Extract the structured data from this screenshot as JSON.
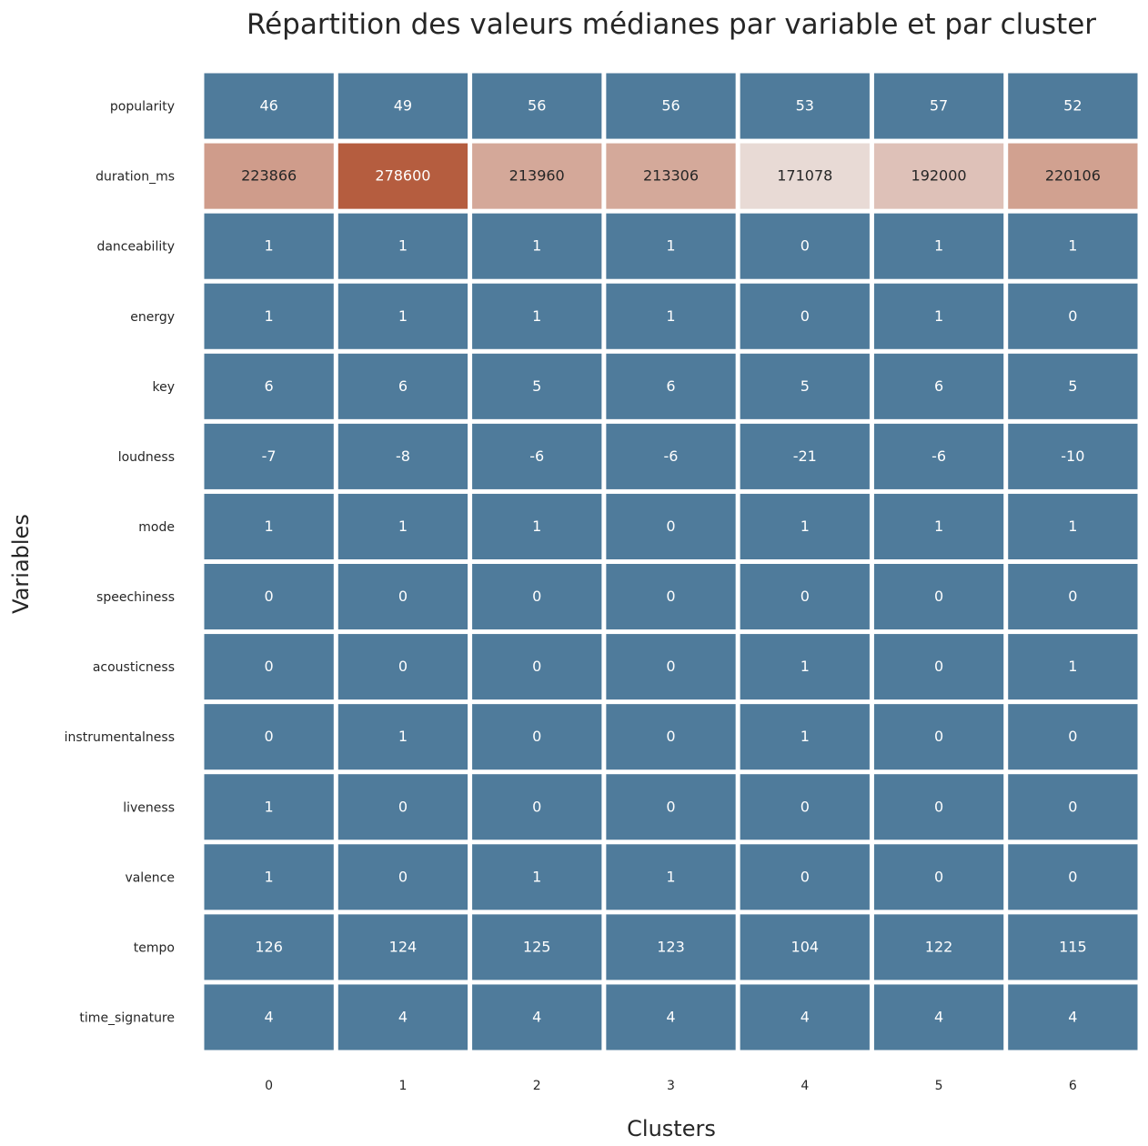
{
  "chart_data": {
    "type": "heatmap",
    "title": "Répartition des valeurs médianes par variable et par cluster",
    "xlabel": "Clusters",
    "ylabel": "Variables",
    "x_categories": [
      "0",
      "1",
      "2",
      "3",
      "4",
      "5",
      "6"
    ],
    "y_categories": [
      "popularity",
      "duration_ms",
      "danceability",
      "energy",
      "key",
      "loudness",
      "mode",
      "speechiness",
      "acousticness",
      "instrumentalness",
      "liveness",
      "valence",
      "tempo",
      "time_signature"
    ],
    "values": [
      [
        46,
        49,
        56,
        56,
        53,
        57,
        52
      ],
      [
        223866,
        278600,
        213960,
        213306,
        171078,
        192000,
        220106
      ],
      [
        1,
        1,
        1,
        1,
        0,
        1,
        1
      ],
      [
        1,
        1,
        1,
        1,
        0,
        1,
        0
      ],
      [
        6,
        6,
        5,
        6,
        5,
        6,
        5
      ],
      [
        -7,
        -8,
        -6,
        -6,
        -21,
        -6,
        -10
      ],
      [
        1,
        1,
        1,
        0,
        1,
        1,
        1
      ],
      [
        0,
        0,
        0,
        0,
        0,
        0,
        0
      ],
      [
        0,
        0,
        0,
        0,
        1,
        0,
        1
      ],
      [
        0,
        1,
        0,
        0,
        1,
        0,
        0
      ],
      [
        1,
        0,
        0,
        0,
        0,
        0,
        0
      ],
      [
        1,
        0,
        1,
        1,
        0,
        0,
        0
      ],
      [
        126,
        124,
        125,
        123,
        104,
        122,
        115
      ],
      [
        4,
        4,
        4,
        4,
        4,
        4,
        4
      ]
    ],
    "colormap": {
      "low_color": "#4f7b9b",
      "mid_color": "#f2f2f2",
      "high_color": "#b55d3f",
      "vmin": 0,
      "vmid": 150000,
      "vmax": 278600
    },
    "grid": false,
    "legend": "none"
  }
}
